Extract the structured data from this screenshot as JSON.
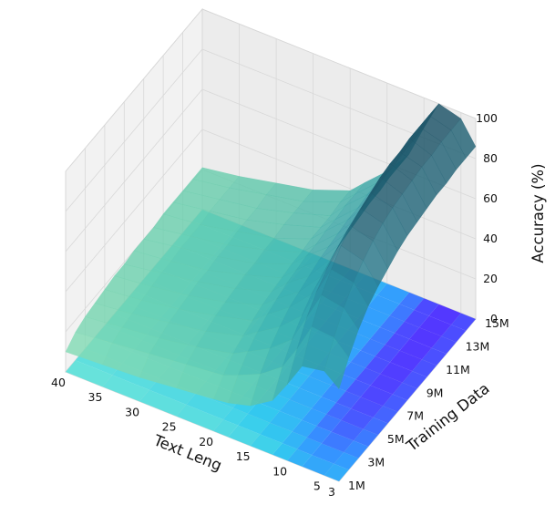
{
  "chart_data": {
    "type": "surface3d",
    "title": "",
    "xlabel": "Text Leng",
    "ylabel": "Training Data",
    "zlabel": "Accuracy (%)",
    "x_ticks": [
      "3",
      "5",
      "10",
      "15",
      "20",
      "25",
      "30",
      "35",
      "40"
    ],
    "x_tick_values": [
      3,
      5,
      10,
      15,
      20,
      25,
      30,
      35,
      40
    ],
    "y_ticks": [
      "1M",
      "3M",
      "5M",
      "7M",
      "9M",
      "11M",
      "13M",
      "15M"
    ],
    "y_tick_values": [
      1,
      3,
      5,
      7,
      9,
      11,
      13,
      15
    ],
    "z_ticks": [
      "0",
      "20",
      "40",
      "60",
      "80",
      "100"
    ],
    "z_tick_values": [
      0,
      20,
      40,
      60,
      80,
      100
    ],
    "xlim": [
      3,
      40
    ],
    "ylim": [
      1,
      15
    ],
    "zlim": [
      0,
      100
    ],
    "grid": true,
    "colormap": [
      "#1a4f63",
      "#2a7a8c",
      "#2f9aa3",
      "#45b3a8",
      "#6fd1ae",
      "#a6ebc0"
    ],
    "floor_projection_colors": [
      "#5533ff",
      "#3399ff",
      "#33ccee",
      "#88f0d0"
    ],
    "x_grid": [
      3,
      5,
      8,
      10,
      12,
      15,
      18,
      20,
      25,
      30,
      35,
      40
    ],
    "y_grid": [
      1,
      2,
      3,
      4,
      5,
      6,
      7,
      8,
      9,
      10,
      11,
      12,
      13,
      14,
      15
    ],
    "z_grid": [
      [
        46,
        52,
        50,
        38,
        27,
        20,
        17,
        16,
        14,
        12,
        11,
        10
      ],
      [
        56,
        63,
        64,
        50,
        38,
        30,
        25,
        22,
        20,
        18,
        16,
        14
      ],
      [
        64,
        72,
        74,
        60,
        46,
        37,
        31,
        27,
        23,
        20,
        18,
        16
      ],
      [
        70,
        79,
        81,
        67,
        52,
        42,
        35,
        30,
        25,
        22,
        19,
        17
      ],
      [
        74,
        84,
        87,
        72,
        57,
        46,
        38,
        32,
        27,
        23,
        20,
        18
      ],
      [
        77,
        88,
        91,
        76,
        60,
        48,
        40,
        34,
        28,
        24,
        21,
        19
      ],
      [
        80,
        91,
        94,
        79,
        63,
        50,
        42,
        35,
        29,
        25,
        22,
        19
      ],
      [
        82,
        93,
        96,
        81,
        65,
        52,
        43,
        36,
        30,
        25,
        22,
        20
      ],
      [
        83,
        94,
        98,
        82,
        66,
        53,
        44,
        37,
        30,
        26,
        23,
        20
      ],
      [
        84,
        95,
        99,
        83,
        67,
        54,
        44,
        37,
        31,
        26,
        23,
        20
      ],
      [
        85,
        96,
        99,
        84,
        68,
        55,
        45,
        38,
        31,
        27,
        23,
        21
      ],
      [
        85,
        96,
        100,
        84,
        68,
        55,
        45,
        38,
        32,
        27,
        24,
        21
      ],
      [
        86,
        97,
        100,
        85,
        69,
        56,
        46,
        38,
        32,
        27,
        24,
        21
      ],
      [
        86,
        97,
        100,
        85,
        69,
        56,
        46,
        39,
        32,
        28,
        24,
        21
      ],
      [
        86,
        97,
        100,
        85,
        69,
        56,
        46,
        39,
        32,
        28,
        24,
        21
      ]
    ]
  }
}
